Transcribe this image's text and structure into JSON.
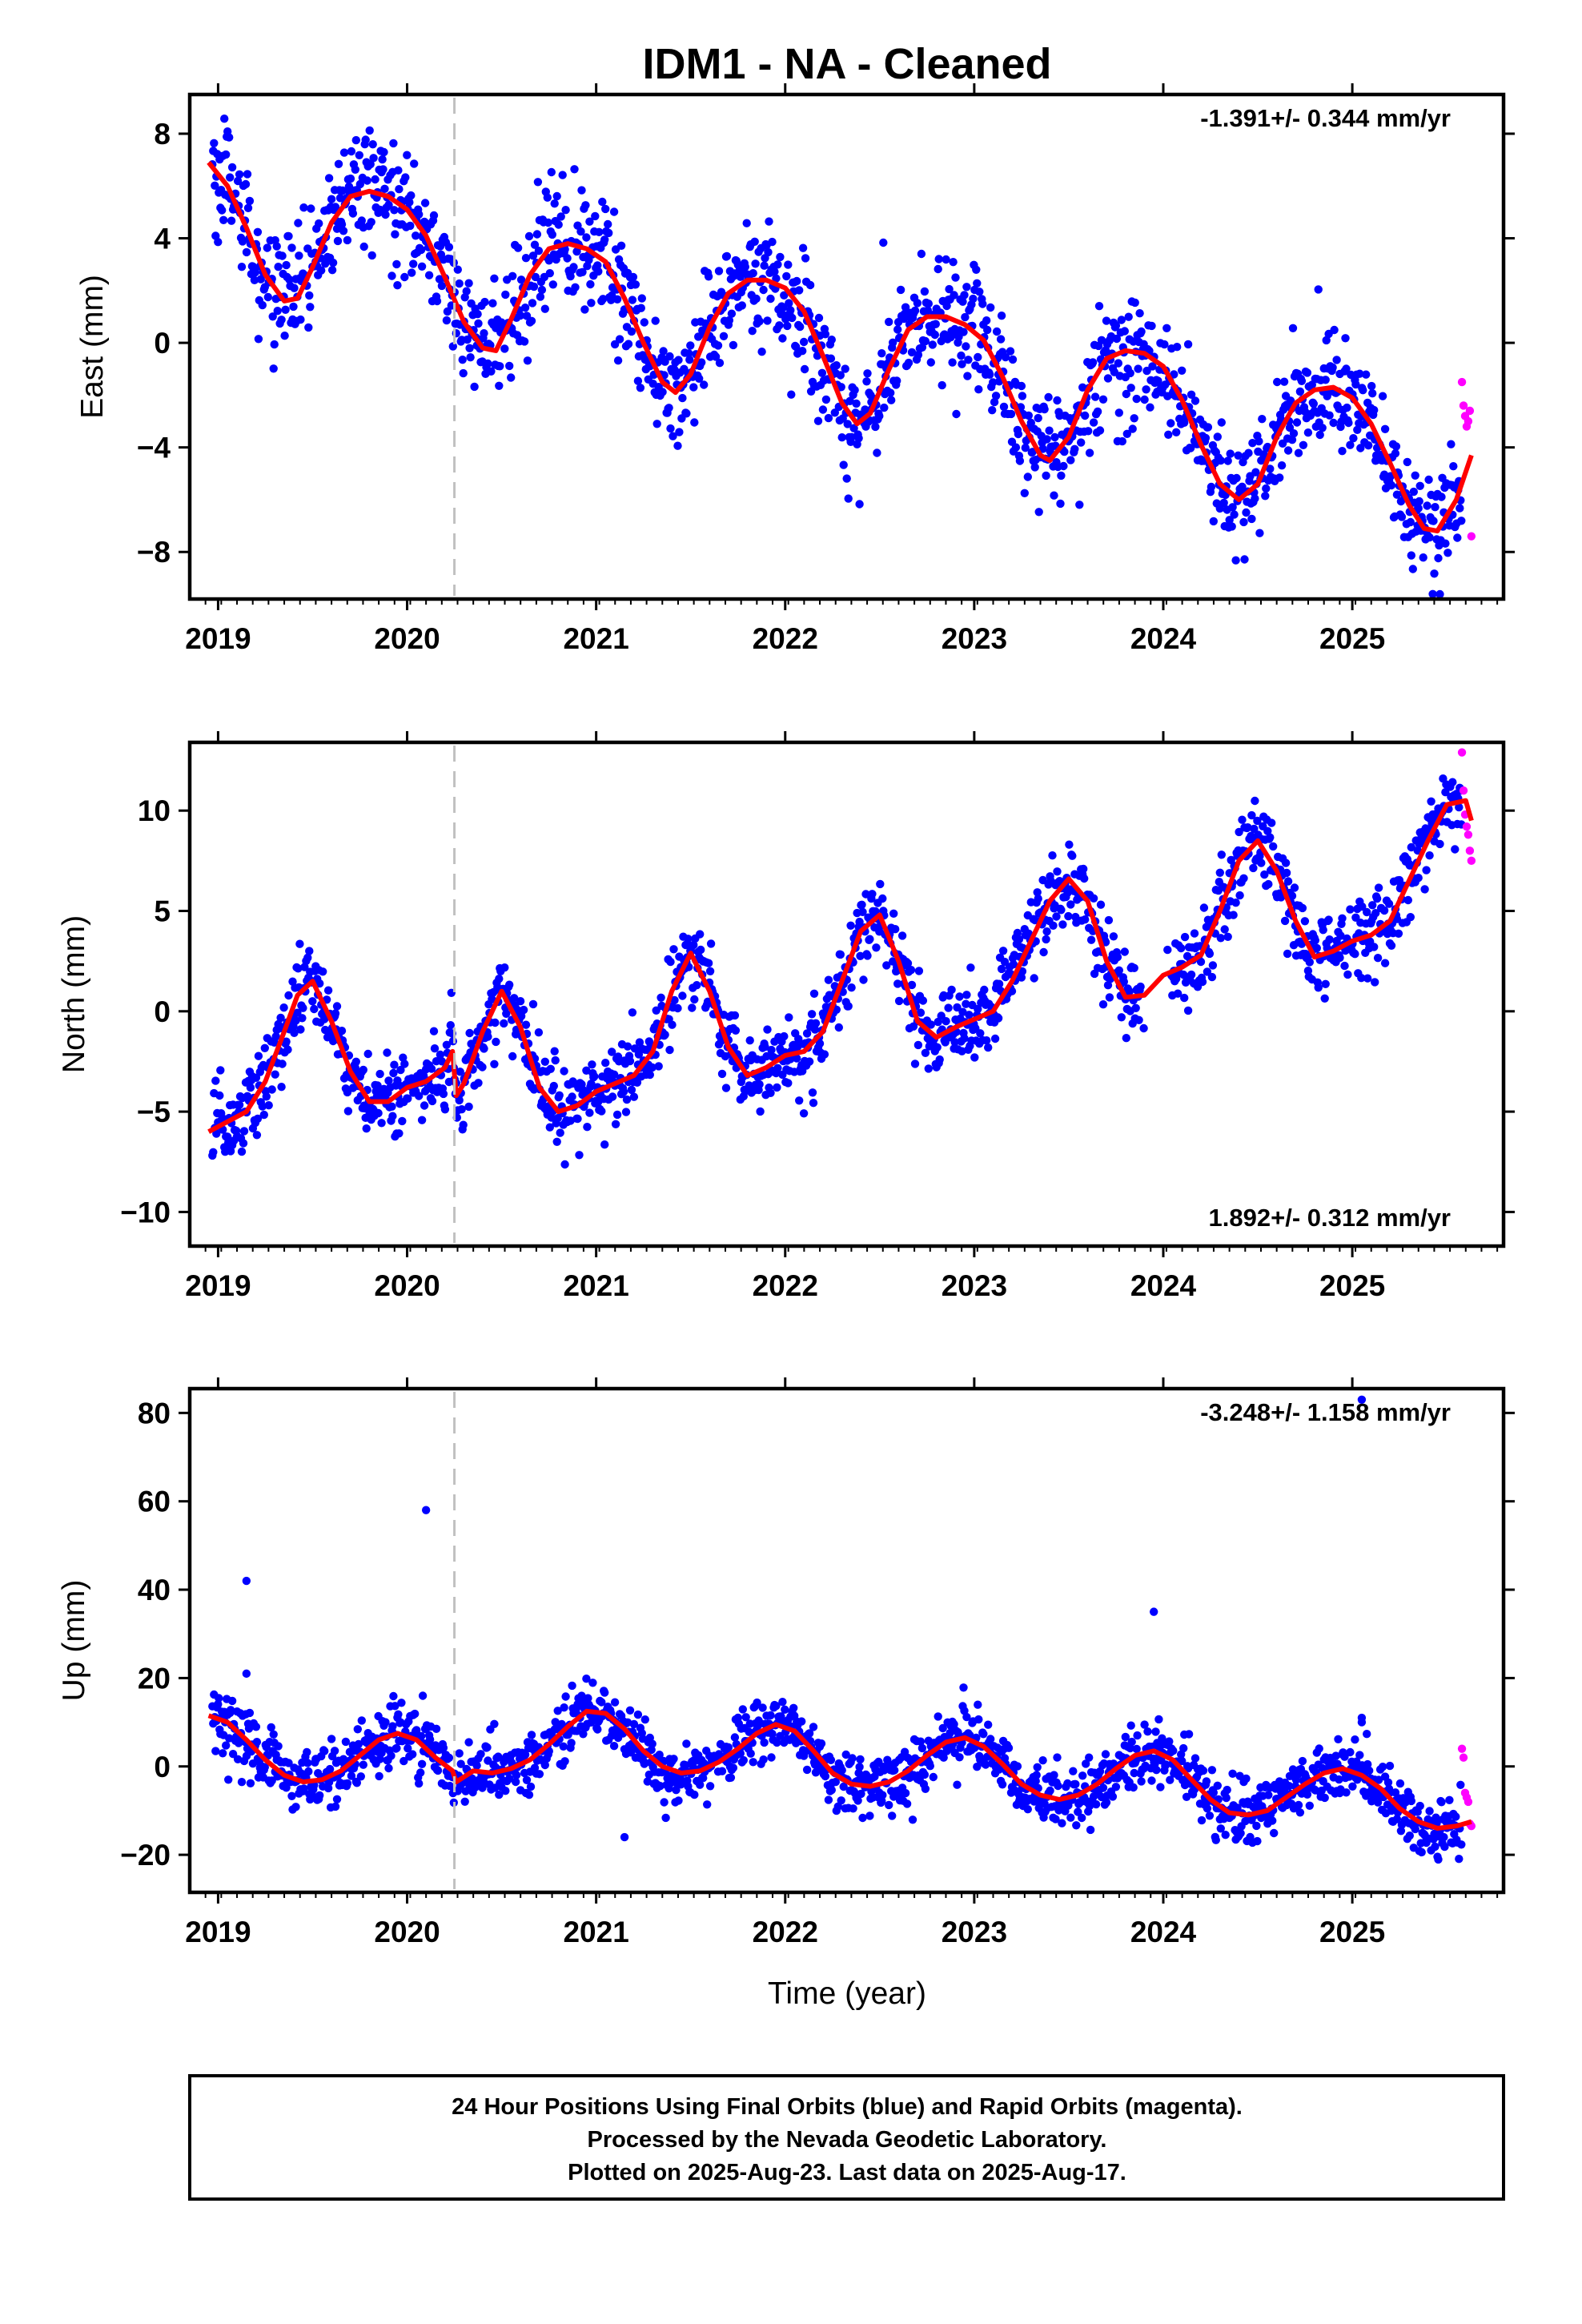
{
  "title": "IDM1  - NA - Cleaned",
  "xlabel": "Time (year)",
  "footer": {
    "line1": "24 Hour Positions Using Final Orbits (blue) and Rapid Orbits (magenta).",
    "line2": "Processed by the Nevada Geodetic Laboratory.",
    "line3": "Plotted on 2025-Aug-23. Last data on 2025-Aug-17."
  },
  "colors": {
    "final_orbits": "#0000ff",
    "rapid_orbits": "#ff00ff",
    "model_fit": "#ff0000",
    "event_marker": "#c0c0c0",
    "frame": "#000000"
  },
  "chart_data": [
    {
      "type": "scatter",
      "panel": "east",
      "ylabel": "East (mm)",
      "rate": "-1.391+/- 0.344 mm/yr",
      "rate_position": "top-right",
      "xlim": [
        2018.85,
        2025.8
      ],
      "ylim": [
        -9.8,
        9.5
      ],
      "xticks": [
        "2019",
        "2020",
        "2021",
        "2022",
        "2023",
        "2024",
        "2025"
      ],
      "yticks": [
        "8",
        "4",
        "0",
        "−4",
        "−8"
      ],
      "ytick_values": [
        8,
        4,
        0,
        -4,
        -8
      ],
      "event_line_year": 2020.25,
      "model_fit": {
        "name": "",
        "x": [
          2018.95,
          2019.05,
          2019.15,
          2019.25,
          2019.35,
          2019.42,
          2019.5,
          2019.6,
          2019.7,
          2019.8,
          2019.9,
          2020.0,
          2020.1,
          2020.2,
          2020.3,
          2020.4,
          2020.47,
          2020.55,
          2020.65,
          2020.75,
          2020.85,
          2020.95,
          2021.05,
          2021.15,
          2021.25,
          2021.35,
          2021.42,
          2021.5,
          2021.6,
          2021.7,
          2021.8,
          2021.9,
          2022.0,
          2022.1,
          2022.2,
          2022.3,
          2022.38,
          2022.45,
          2022.55,
          2022.65,
          2022.75,
          2022.85,
          2022.95,
          2023.05,
          2023.15,
          2023.25,
          2023.35,
          2023.4,
          2023.5,
          2023.6,
          2023.7,
          2023.8,
          2023.9,
          2024.0,
          2024.1,
          2024.2,
          2024.3,
          2024.4,
          2024.5,
          2024.6,
          2024.7,
          2024.8,
          2024.9,
          2025.0,
          2025.1,
          2025.2,
          2025.3,
          2025.38,
          2025.45,
          2025.55,
          2025.63
        ],
        "y": [
          6.9,
          6.0,
          4.4,
          2.6,
          1.6,
          1.7,
          2.9,
          4.6,
          5.6,
          5.8,
          5.6,
          5.1,
          4.1,
          2.5,
          0.8,
          -0.2,
          -0.3,
          0.9,
          2.6,
          3.6,
          3.8,
          3.6,
          3.1,
          1.7,
          0.0,
          -1.5,
          -1.9,
          -1.2,
          0.6,
          1.9,
          2.4,
          2.4,
          2.1,
          1.2,
          -0.5,
          -2.3,
          -3.1,
          -2.7,
          -1.0,
          0.5,
          1.0,
          1.0,
          0.7,
          0.1,
          -1.3,
          -3.0,
          -4.3,
          -4.5,
          -3.6,
          -1.8,
          -0.6,
          -0.3,
          -0.4,
          -0.9,
          -2.2,
          -3.9,
          -5.4,
          -6.0,
          -5.4,
          -3.6,
          -2.3,
          -1.8,
          -1.7,
          -2.1,
          -3.1,
          -4.6,
          -6.2,
          -7.1,
          -7.2,
          -6.0,
          -4.3
        ]
      },
      "scatter_noise_mm": 1.1,
      "rapid_orbits": {
        "x_range": [
          2025.58,
          2025.63
        ],
        "y": [
          -1.5,
          -2.4,
          -2.8,
          -3.2,
          -3.0,
          -2.6,
          -7.4
        ]
      }
    },
    {
      "type": "scatter",
      "panel": "north",
      "ylabel": "North (mm)",
      "rate": "1.892+/- 0.312 mm/yr",
      "rate_position": "bottom-right",
      "xlim": [
        2018.85,
        2025.8
      ],
      "ylim": [
        -11.7,
        13.4
      ],
      "xticks": [
        "2019",
        "2020",
        "2021",
        "2022",
        "2023",
        "2024",
        "2025"
      ],
      "yticks": [
        "10",
        "5",
        "0",
        "−5",
        "−10"
      ],
      "ytick_values": [
        10,
        5,
        0,
        -5,
        -10
      ],
      "event_line_year": 2020.25,
      "model_fit": {
        "name": "",
        "x": [
          2018.95,
          2019.05,
          2019.15,
          2019.25,
          2019.35,
          2019.42,
          2019.5,
          2019.6,
          2019.7,
          2019.8,
          2019.9,
          2020.0,
          2020.1,
          2020.2,
          2020.24,
          2020.26,
          2020.3,
          2020.4,
          2020.5,
          2020.6,
          2020.7,
          2020.8,
          2020.9,
          2021.0,
          2021.1,
          2021.2,
          2021.3,
          2021.4,
          2021.5,
          2021.6,
          2021.7,
          2021.8,
          2021.9,
          2022.0,
          2022.1,
          2022.2,
          2022.3,
          2022.4,
          2022.5,
          2022.6,
          2022.7,
          2022.8,
          2022.9,
          2023.0,
          2023.1,
          2023.2,
          2023.3,
          2023.4,
          2023.5,
          2023.6,
          2023.7,
          2023.8,
          2023.9,
          2024.0,
          2024.1,
          2024.2,
          2024.3,
          2024.4,
          2024.5,
          2024.6,
          2024.7,
          2024.8,
          2024.9,
          2025.0,
          2025.1,
          2025.2,
          2025.3,
          2025.4,
          2025.5,
          2025.6,
          2025.63
        ],
        "y": [
          -6.0,
          -5.5,
          -5.0,
          -3.5,
          -1.0,
          0.8,
          1.5,
          -0.5,
          -3.0,
          -4.5,
          -4.5,
          -3.8,
          -3.5,
          -2.8,
          -2.0,
          -4.2,
          -3.6,
          -1.0,
          1.0,
          -0.8,
          -3.8,
          -5.0,
          -4.7,
          -4.0,
          -3.6,
          -3.2,
          -2.0,
          1.0,
          2.9,
          1.0,
          -1.8,
          -3.2,
          -2.8,
          -2.2,
          -2.0,
          -1.0,
          1.5,
          4.0,
          4.8,
          2.5,
          -0.5,
          -1.3,
          -0.8,
          -0.4,
          0.0,
          1.5,
          3.5,
          5.5,
          6.6,
          5.5,
          2.5,
          0.7,
          0.8,
          1.8,
          2.2,
          2.8,
          5.0,
          7.5,
          8.5,
          7.0,
          4.5,
          2.7,
          3.0,
          3.5,
          3.8,
          4.5,
          6.5,
          8.5,
          10.3,
          10.5,
          9.5
        ],
        "break_at": 2020.25
      },
      "scatter_noise_mm": 1.0,
      "rapid_orbits": {
        "x_range": [
          2025.58,
          2025.63
        ],
        "y": [
          12.9,
          11.0,
          9.8,
          9.2,
          8.8,
          8.0,
          7.5
        ]
      }
    },
    {
      "type": "scatter",
      "panel": "up",
      "ylabel": "Up (mm)",
      "rate": "-3.248+/- 1.158 mm/yr",
      "rate_position": "top-right",
      "xlim": [
        2018.85,
        2025.8
      ],
      "ylim": [
        -28.5,
        85.5
      ],
      "xticks": [
        "2019",
        "2020",
        "2021",
        "2022",
        "2023",
        "2024",
        "2025"
      ],
      "yticks": [
        "80",
        "60",
        "40",
        "20",
        "0",
        "−20"
      ],
      "ytick_values": [
        80,
        60,
        40,
        20,
        0,
        -20
      ],
      "event_line_year": 2020.25,
      "model_fit": {
        "name": "",
        "x": [
          2018.95,
          2019.05,
          2019.15,
          2019.25,
          2019.35,
          2019.45,
          2019.55,
          2019.65,
          2019.75,
          2019.85,
          2019.95,
          2020.05,
          2020.15,
          2020.24,
          2020.26,
          2020.35,
          2020.45,
          2020.55,
          2020.65,
          2020.75,
          2020.85,
          2020.95,
          2021.05,
          2021.15,
          2021.25,
          2021.35,
          2021.45,
          2021.55,
          2021.65,
          2021.75,
          2021.85,
          2021.95,
          2022.05,
          2022.15,
          2022.25,
          2022.35,
          2022.45,
          2022.55,
          2022.65,
          2022.75,
          2022.85,
          2022.95,
          2023.05,
          2023.15,
          2023.25,
          2023.35,
          2023.45,
          2023.55,
          2023.65,
          2023.75,
          2023.85,
          2023.95,
          2024.05,
          2024.15,
          2024.25,
          2024.35,
          2024.45,
          2024.55,
          2024.65,
          2024.75,
          2024.85,
          2024.95,
          2025.05,
          2025.15,
          2025.25,
          2025.35,
          2025.45,
          2025.55,
          2025.63
        ],
        "y": [
          11.5,
          10.0,
          6.0,
          1.5,
          -2.0,
          -3.5,
          -3.0,
          -1.0,
          2.5,
          6.0,
          7.5,
          6.0,
          2.0,
          -1.0,
          -3.5,
          -1.0,
          -1.5,
          -0.5,
          1.5,
          5.0,
          9.0,
          12.5,
          12.0,
          8.5,
          3.5,
          0.0,
          -1.5,
          -1.0,
          1.0,
          4.0,
          7.5,
          9.5,
          8.0,
          3.5,
          -1.5,
          -4.0,
          -4.5,
          -3.5,
          -1.0,
          2.5,
          5.5,
          6.5,
          4.5,
          0.5,
          -4.0,
          -6.5,
          -7.5,
          -6.5,
          -4.0,
          -0.5,
          2.5,
          3.5,
          1.5,
          -3.0,
          -7.5,
          -10.5,
          -11.0,
          -10.0,
          -7.0,
          -4.0,
          -1.5,
          -0.5,
          -2.0,
          -5.0,
          -9.5,
          -12.5,
          -14.0,
          -13.5,
          -12.5
        ],
        "break_at": 2020.25
      },
      "scatter_noise_mm": 3.5,
      "outliers": {
        "x": [
          2019.15,
          2019.15,
          2020.1,
          2021.15,
          2023.95,
          2025.05,
          2025.05,
          2025.05
        ],
        "y": [
          42,
          21,
          58,
          -16,
          35,
          83,
          11,
          10
        ]
      },
      "rapid_orbits": {
        "x_range": [
          2025.58,
          2025.63
        ],
        "y": [
          4.0,
          2.0,
          -6.0,
          -7.0,
          -8.0,
          -13.0,
          -13.5
        ]
      }
    }
  ]
}
